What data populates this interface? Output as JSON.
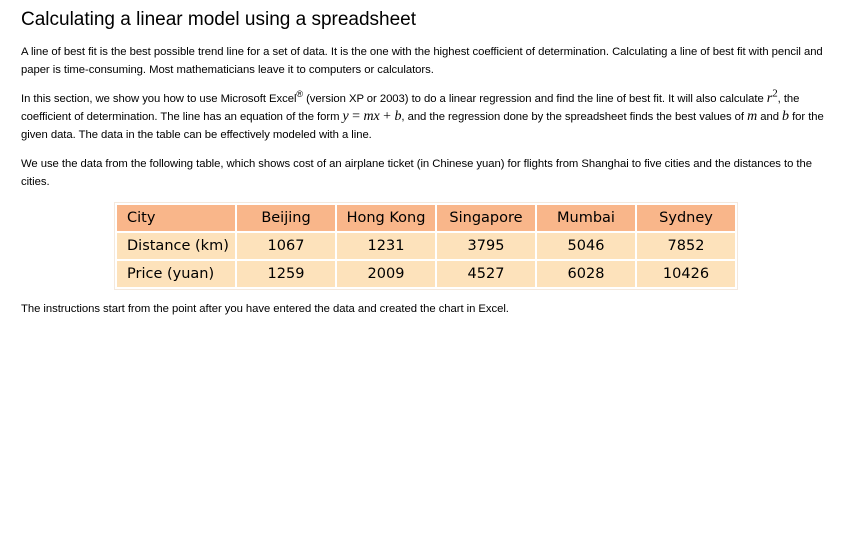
{
  "title": "Calculating a linear model using a spreadsheet",
  "para1": "A line of best fit is the best possible trend line for a set of data. It is the one with the highest coefficient of determination. Calculating a line of best fit with pencil and paper is time-consuming. Most mathematicians leave it to computers or calculators.",
  "para2": {
    "part1": "In this section, we show you how to use Microsoft Excel",
    "registered": "®",
    "part2": " (version XP or 2003) to do a linear regression and find the line of best fit. It will also calculate ",
    "r_letter": "r",
    "r_exp": "2",
    "part3": ", the coefficient of determination. The line has an equation of the form ",
    "eq_y": "y",
    "eq_eq": " = ",
    "eq_m": "m",
    "eq_x": "x",
    "eq_plus": " + ",
    "eq_b": "b",
    "part4": ", and the regression done by the spreadsheet finds the best values of ",
    "var_m": "m",
    "part5": " and ",
    "var_b": "b",
    "part6": " for the given data. The data in the table can be effectively modeled with a line."
  },
  "para3": "We use the data from the following table, which shows cost of an airplane ticket (in Chinese yuan) for flights from Shanghai to five cities and the distances to the cities.",
  "table": {
    "header": [
      "City",
      "Beijing",
      "Hong Kong",
      "Singapore",
      "Mumbai",
      "Sydney"
    ],
    "rows": [
      [
        "Distance (km)",
        "1067",
        "1231",
        "3795",
        "5046",
        "7852"
      ],
      [
        "Price (yuan)",
        "1259",
        "2009",
        "4527",
        "6028",
        "10426"
      ]
    ]
  },
  "para4": "The instructions start from the point after you have entered the data and created the chart in Excel."
}
